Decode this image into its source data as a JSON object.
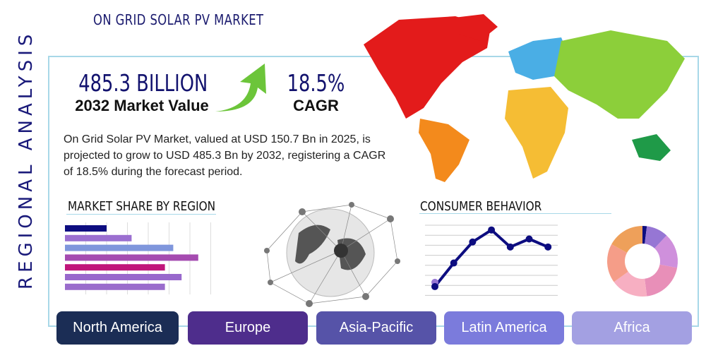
{
  "header": {
    "title": "ON GRID SOLAR PV MARKET",
    "side_title": "REGIONAL ANALYSIS"
  },
  "stats": {
    "market_value": "485.3 BILLION",
    "market_value_label": "2032 Market Value",
    "cagr": "18.5%",
    "cagr_label": "CAGR"
  },
  "description": "On Grid Solar PV Market, valued at USD 150.7 Bn in 2025, is projected to grow to USD 485.3 Bn by 2032, registering a CAGR of 18.5% during the forecast period.",
  "sections": {
    "market_share": "MARKET SHARE BY REGION",
    "consumer": "CONSUMER BEHAVIOR"
  },
  "regions": [
    {
      "label": "North America",
      "color": "#1b2d55"
    },
    {
      "label": "Europe",
      "color": "#4e2d8c"
    },
    {
      "label": "Asia-Pacific",
      "color": "#5653a8"
    },
    {
      "label": "Latin America",
      "color": "#7b7bdc"
    },
    {
      "label": "Africa",
      "color": "#a3a0e2"
    }
  ],
  "chart_data": [
    {
      "type": "bar",
      "orientation": "horizontal",
      "values": [
        2,
        3.2,
        5.2,
        6.4,
        4.8,
        5.6,
        4.8
      ],
      "colors": [
        "#0d0d80",
        "#9b6fd0",
        "#7f96dc",
        "#a54bb0",
        "#c0157a",
        "#9868cc",
        "#9a6ccc"
      ],
      "xlim": [
        0,
        7
      ],
      "grid": true
    },
    {
      "type": "line",
      "values": [
        0.85,
        3.2,
        5.3,
        6.5,
        4.8,
        5.6,
        4.8
      ],
      "ylim": [
        0,
        7
      ],
      "grid": true,
      "color": "#0d0d80"
    },
    {
      "type": "pie",
      "donut": true,
      "values": [
        2,
        10,
        16,
        20,
        17,
        18,
        17
      ],
      "colors": [
        "#0d0d80",
        "#9676d4",
        "#cf90dc",
        "#e88fb8",
        "#f7afc2",
        "#f59d88",
        "#eea05a"
      ]
    }
  ]
}
